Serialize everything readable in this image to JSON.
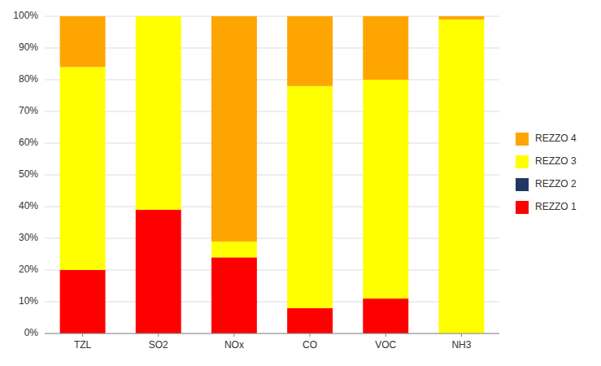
{
  "chart_data": {
    "type": "bar",
    "stacked": true,
    "categories": [
      "TZL",
      "SO2",
      "NOx",
      "CO",
      "VOC",
      "NH3"
    ],
    "series": [
      {
        "name": "REZZO 1",
        "color": "#FF0000",
        "values": [
          20,
          39,
          24,
          8,
          11,
          0
        ]
      },
      {
        "name": "REZZO 2",
        "color": "#1F3864",
        "values": [
          0,
          0,
          0,
          0,
          0,
          0
        ]
      },
      {
        "name": "REZZO 3",
        "color": "#FFFF00",
        "values": [
          64,
          61,
          5,
          70,
          69,
          99
        ]
      },
      {
        "name": "REZZO 4",
        "color": "#FFA500",
        "values": [
          16,
          0,
          71,
          22,
          20,
          1
        ]
      }
    ],
    "ylim": [
      0,
      100
    ],
    "yticks": [
      {
        "value": 0,
        "label": "0%"
      },
      {
        "value": 10,
        "label": "10%"
      },
      {
        "value": 20,
        "label": "20%"
      },
      {
        "value": 30,
        "label": "30%"
      },
      {
        "value": 40,
        "label": "40%"
      },
      {
        "value": 50,
        "label": "50%"
      },
      {
        "value": 60,
        "label": "60%"
      },
      {
        "value": 70,
        "label": "70%"
      },
      {
        "value": 80,
        "label": "80%"
      },
      {
        "value": 90,
        "label": "90%"
      },
      {
        "value": 100,
        "label": "100%"
      }
    ],
    "grid": true,
    "legend": "right"
  }
}
